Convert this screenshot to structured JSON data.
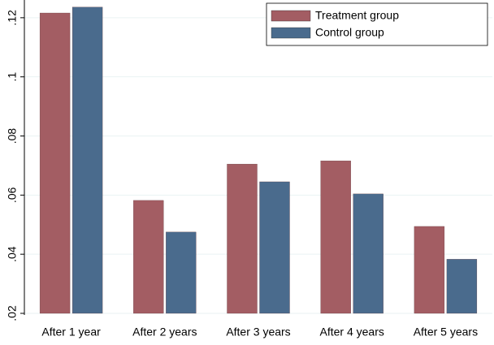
{
  "chart_data": {
    "type": "bar",
    "categories": [
      "After 1 year",
      "After 2 years",
      "After 3 years",
      "After 4 years",
      "After 5 years"
    ],
    "series": [
      {
        "name": "Treatment group",
        "color": "#a35d63",
        "values": [
          0.1216,
          0.0582,
          0.0705,
          0.0716,
          0.0494
        ]
      },
      {
        "name": "Control group",
        "color": "#4a6b8d",
        "values": [
          0.1236,
          0.0475,
          0.0645,
          0.0604,
          0.0383
        ]
      }
    ],
    "ylim": [
      0.02,
      0.126
    ],
    "yticks": [
      {
        "value": 0.02,
        "label": ".02"
      },
      {
        "value": 0.04,
        "label": ".04"
      },
      {
        "value": 0.06,
        "label": ".06"
      },
      {
        "value": 0.08,
        "label": ".08"
      },
      {
        "value": 0.1,
        "label": ".1"
      },
      {
        "value": 0.12,
        "label": ".12"
      }
    ],
    "grid": true,
    "legend": "top-right"
  }
}
